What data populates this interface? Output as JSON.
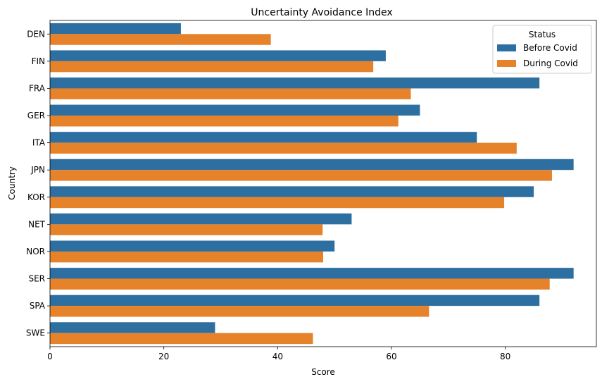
{
  "chart_data": {
    "type": "bar",
    "orientation": "horizontal",
    "title": "Uncertainty Avoidance Index",
    "xlabel": "Score",
    "ylabel": "Country",
    "xlim": [
      0,
      96
    ],
    "xticks": [
      0,
      20,
      40,
      60,
      80
    ],
    "grid": false,
    "categories": [
      "DEN",
      "FIN",
      "FRA",
      "GER",
      "ITA",
      "JPN",
      "KOR",
      "NET",
      "NOR",
      "SER",
      "SPA",
      "SWE"
    ],
    "legend": {
      "title": "Status",
      "placement": "top-right"
    },
    "series": [
      {
        "name": "Before Covid",
        "color": "#2d6fa0",
        "values": [
          23,
          59,
          86,
          65,
          75,
          92,
          85,
          53,
          50,
          92,
          86,
          29
        ]
      },
      {
        "name": "During Covid",
        "color": "#e5822a",
        "values": [
          38.8,
          56.8,
          63.4,
          61.2,
          82.0,
          88.2,
          79.8,
          47.9,
          48.0,
          87.8,
          66.6,
          46.2
        ]
      }
    ]
  }
}
